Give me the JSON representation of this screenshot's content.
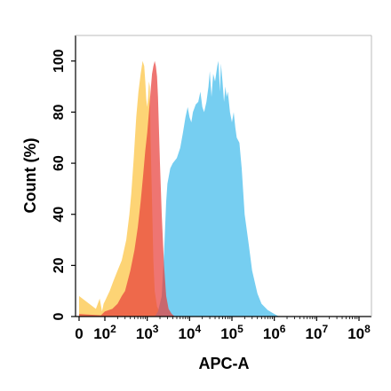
{
  "chart_data": {
    "type": "area",
    "title": "",
    "xlabel": "APC-A",
    "ylabel": "Count  (%)",
    "x_scale": "log",
    "xlim": [
      0,
      100000000
    ],
    "ylim": [
      0,
      110
    ],
    "x_ticks": [
      {
        "value": 0,
        "label": "0",
        "sup": ""
      },
      {
        "value": 100,
        "label": "10",
        "sup": "2"
      },
      {
        "value": 1000,
        "label": "10",
        "sup": "3"
      },
      {
        "value": 10000,
        "label": "10",
        "sup": "4"
      },
      {
        "value": 100000,
        "label": "10",
        "sup": "5"
      },
      {
        "value": 1000000,
        "label": "10",
        "sup": "6"
      },
      {
        "value": 10000000,
        "label": "10",
        "sup": "7"
      },
      {
        "value": 100000000,
        "label": "10",
        "sup": "8"
      }
    ],
    "y_ticks": [
      0,
      20,
      40,
      60,
      80,
      100
    ],
    "grid": false,
    "legend": "none",
    "series": [
      {
        "color": "#fdd26e",
        "points": [
          [
            0,
            8
          ],
          [
            20,
            3
          ],
          [
            40,
            7
          ],
          [
            60,
            2
          ],
          [
            80,
            5
          ],
          [
            100,
            6
          ],
          [
            130,
            10
          ],
          [
            160,
            14
          ],
          [
            200,
            18
          ],
          [
            250,
            22
          ],
          [
            320,
            30
          ],
          [
            380,
            40
          ],
          [
            420,
            48
          ],
          [
            480,
            62
          ],
          [
            550,
            78
          ],
          [
            620,
            88
          ],
          [
            700,
            95
          ],
          [
            780,
            100
          ],
          [
            850,
            98
          ],
          [
            900,
            92
          ],
          [
            950,
            85
          ],
          [
            1000,
            82
          ],
          [
            1050,
            86
          ],
          [
            1100,
            92
          ],
          [
            1150,
            90
          ],
          [
            1200,
            70
          ],
          [
            1300,
            45
          ],
          [
            1400,
            22
          ],
          [
            1500,
            10
          ],
          [
            1700,
            4
          ],
          [
            2000,
            1.5
          ],
          [
            2500,
            0.5
          ],
          [
            3000,
            0
          ]
        ]
      },
      {
        "color": "#6fcbf0",
        "points": [
          [
            1500,
            0
          ],
          [
            1800,
            2
          ],
          [
            2200,
            8
          ],
          [
            2500,
            25
          ],
          [
            2800,
            45
          ],
          [
            3000,
            52
          ],
          [
            3500,
            58
          ],
          [
            4000,
            60
          ],
          [
            5000,
            62
          ],
          [
            6000,
            66
          ],
          [
            7000,
            72
          ],
          [
            8000,
            78
          ],
          [
            9000,
            82
          ],
          [
            10000,
            78
          ],
          [
            11000,
            76
          ],
          [
            12000,
            80
          ],
          [
            14000,
            83
          ],
          [
            16000,
            84
          ],
          [
            18000,
            88
          ],
          [
            20000,
            82
          ],
          [
            22000,
            80
          ],
          [
            25000,
            84
          ],
          [
            28000,
            90
          ],
          [
            30000,
            96
          ],
          [
            33000,
            86
          ],
          [
            36000,
            95
          ],
          [
            40000,
            92
          ],
          [
            45000,
            98
          ],
          [
            48000,
            100
          ],
          [
            52000,
            88
          ],
          [
            55000,
            99
          ],
          [
            60000,
            92
          ],
          [
            65000,
            84
          ],
          [
            70000,
            90
          ],
          [
            75000,
            86
          ],
          [
            80000,
            88
          ],
          [
            90000,
            80
          ],
          [
            100000,
            76
          ],
          [
            110000,
            80
          ],
          [
            120000,
            74
          ],
          [
            130000,
            70
          ],
          [
            150000,
            68
          ],
          [
            170000,
            58
          ],
          [
            200000,
            40
          ],
          [
            250000,
            28
          ],
          [
            300000,
            18
          ],
          [
            400000,
            9
          ],
          [
            500000,
            5
          ],
          [
            700000,
            2.5
          ],
          [
            1000000,
            1
          ],
          [
            1300000,
            0
          ]
        ]
      },
      {
        "color": "#e8403c",
        "points": [
          [
            0,
            1
          ],
          [
            50,
            0.5
          ],
          [
            100,
            2
          ],
          [
            150,
            3
          ],
          [
            200,
            5
          ],
          [
            250,
            8
          ],
          [
            300,
            10
          ],
          [
            400,
            18
          ],
          [
            500,
            26
          ],
          [
            600,
            35
          ],
          [
            700,
            45
          ],
          [
            800,
            55
          ],
          [
            900,
            65
          ],
          [
            1000,
            72
          ],
          [
            1100,
            80
          ],
          [
            1200,
            88
          ],
          [
            1300,
            95
          ],
          [
            1400,
            98
          ],
          [
            1500,
            100
          ],
          [
            1600,
            98
          ],
          [
            1700,
            94
          ],
          [
            1800,
            86
          ],
          [
            2000,
            60
          ],
          [
            2200,
            40
          ],
          [
            2500,
            20
          ],
          [
            2800,
            8
          ],
          [
            3200,
            3
          ],
          [
            3800,
            1
          ],
          [
            4500,
            0
          ]
        ]
      }
    ]
  }
}
